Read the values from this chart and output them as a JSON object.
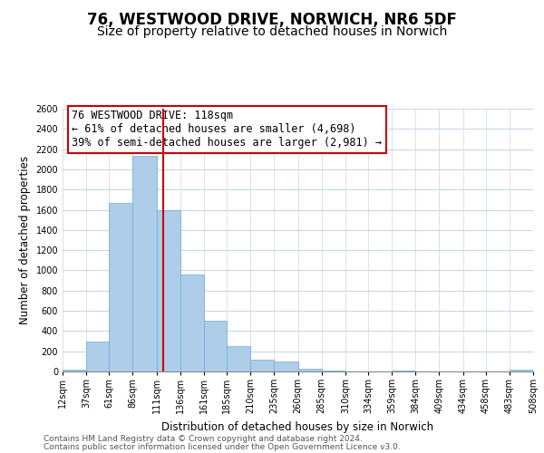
{
  "title": "76, WESTWOOD DRIVE, NORWICH, NR6 5DF",
  "subtitle": "Size of property relative to detached houses in Norwich",
  "xlabel": "Distribution of detached houses by size in Norwich",
  "ylabel": "Number of detached properties",
  "bar_left_edges": [
    12,
    37,
    61,
    86,
    111,
    136,
    161,
    185,
    210,
    235,
    260,
    285,
    310,
    334,
    359,
    384,
    409,
    434,
    458,
    483
  ],
  "bar_heights": [
    20,
    295,
    1670,
    2130,
    1600,
    960,
    505,
    250,
    120,
    95,
    30,
    5,
    0,
    0,
    5,
    0,
    0,
    0,
    0,
    20
  ],
  "bar_widths": [
    25,
    24,
    25,
    25,
    25,
    25,
    24,
    25,
    25,
    25,
    25,
    25,
    24,
    25,
    25,
    25,
    25,
    24,
    25,
    25
  ],
  "tick_labels": [
    "12sqm",
    "37sqm",
    "61sqm",
    "86sqm",
    "111sqm",
    "136sqm",
    "161sqm",
    "185sqm",
    "210sqm",
    "235sqm",
    "260sqm",
    "285sqm",
    "310sqm",
    "334sqm",
    "359sqm",
    "384sqm",
    "409sqm",
    "434sqm",
    "458sqm",
    "483sqm",
    "508sqm"
  ],
  "bar_color": "#aecde8",
  "bar_edge_color": "#6aaed6",
  "vline_x": 118,
  "vline_color": "#cc0000",
  "annotation_line1": "76 WESTWOOD DRIVE: 118sqm",
  "annotation_line2": "← 61% of detached houses are smaller (4,698)",
  "annotation_line3": "39% of semi-detached houses are larger (2,981) →",
  "ylim": [
    0,
    2600
  ],
  "yticks": [
    0,
    200,
    400,
    600,
    800,
    1000,
    1200,
    1400,
    1600,
    1800,
    2000,
    2200,
    2400,
    2600
  ],
  "footnote1": "Contains HM Land Registry data © Crown copyright and database right 2024.",
  "footnote2": "Contains public sector information licensed under the Open Government Licence v3.0.",
  "background_color": "#ffffff",
  "grid_color": "#c8d8e8",
  "title_fontsize": 12,
  "subtitle_fontsize": 10,
  "axis_label_fontsize": 8.5,
  "tick_fontsize": 7,
  "annotation_fontsize": 8.5,
  "footnote_fontsize": 6.5
}
